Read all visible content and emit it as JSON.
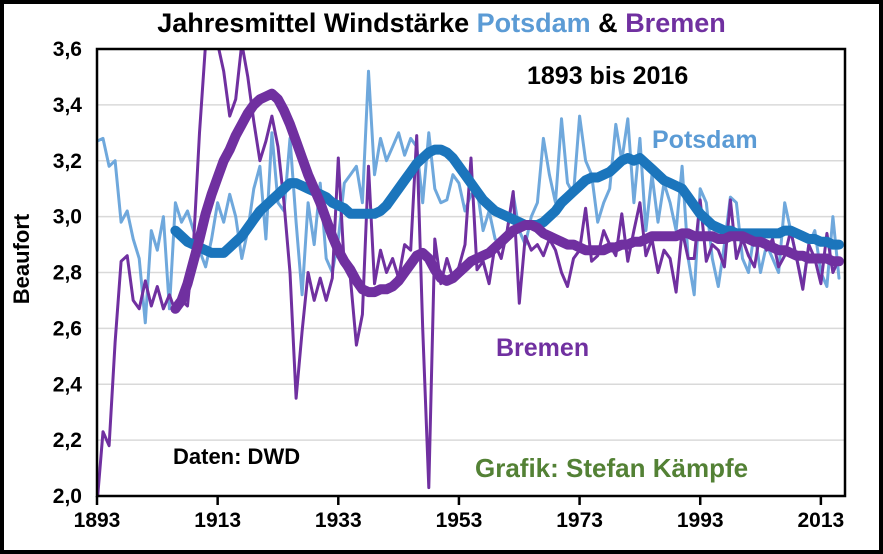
{
  "title": {
    "part1": "Jahresmittel Windstärke ",
    "potsdam": "Potsdam",
    "amp": " & ",
    "bremen": "Bremen"
  },
  "annotations": {
    "range": "1893 bis 2016",
    "potsdam": "Potsdam",
    "bremen": "Bremen",
    "source": "Daten: DWD",
    "credit": "Grafik: Stefan Kämpfe"
  },
  "colors": {
    "potsdam_annual": "#6FA8DC",
    "potsdam_smoothed": "#1B75BC",
    "bremen": "#7030A0",
    "title_potsdam": "#5B9BD5",
    "title_bremen": "#7030A0",
    "credit_green": "#538135",
    "grid": "#D9D9D9",
    "axis": "#000000",
    "background": "#FFFFFF"
  },
  "chart_data": {
    "type": "line",
    "title": "Jahresmittel Windstärke Potsdam & Bremen",
    "xlabel": "",
    "ylabel": "Beaufort",
    "ylim": [
      2.0,
      3.6
    ],
    "xlim": [
      1893,
      2017
    ],
    "grid": "horizontal-only",
    "legend_position": "inline-text-labels",
    "y_ticks": {
      "values": [
        2.0,
        2.2,
        2.4,
        2.6,
        2.8,
        3.0,
        3.2,
        3.4,
        3.6
      ],
      "labels": [
        "2,0",
        "2,2",
        "2,4",
        "2,6",
        "2,8",
        "3,0",
        "3,2",
        "3,4",
        "3,6"
      ]
    },
    "x_ticks": {
      "values": [
        1893,
        1913,
        1933,
        1953,
        1973,
        1993,
        2013
      ],
      "labels": [
        "1893",
        "1913",
        "1933",
        "1953",
        "1973",
        "1993",
        "2013"
      ]
    },
    "series": [
      {
        "id": "potsdam-annual",
        "name": "Potsdam",
        "role": "annual",
        "color": "#6FA8DC",
        "stroke_width": 3,
        "start_year": 1893,
        "values": [
          3.27,
          3.28,
          3.18,
          3.2,
          2.98,
          3.02,
          2.92,
          2.85,
          2.62,
          2.95,
          2.88,
          3.0,
          2.67,
          3.05,
          2.98,
          3.02,
          2.95,
          2.88,
          2.82,
          2.92,
          3.05,
          2.98,
          3.08,
          3.0,
          2.85,
          2.95,
          3.1,
          3.18,
          2.92,
          3.3,
          3.05,
          3.02,
          3.28,
          2.98,
          2.72,
          3.05,
          2.9,
          3.12,
          2.85,
          2.8,
          2.92,
          3.12,
          3.15,
          3.18,
          3.05,
          3.52,
          3.15,
          3.28,
          3.2,
          3.25,
          3.3,
          3.22,
          3.28,
          3.25,
          3.05,
          3.3,
          3.1,
          3.05,
          3.06,
          3.15,
          3.12,
          3.02,
          3.08,
          3.1,
          2.95,
          3.02,
          2.92,
          2.9,
          2.95,
          3.08,
          2.95,
          2.9,
          3.0,
          3.05,
          3.28,
          3.15,
          3.05,
          3.35,
          3.12,
          3.08,
          3.36,
          3.2,
          3.15,
          2.98,
          3.05,
          3.1,
          3.33,
          3.2,
          3.35,
          3.05,
          3.28,
          2.95,
          3.15,
          2.98,
          3.12,
          3.05,
          2.95,
          3.18,
          2.85,
          2.72,
          3.1,
          3.05,
          2.85,
          2.75,
          2.9,
          3.07,
          3.05,
          2.85,
          2.8,
          2.95,
          2.8,
          2.9,
          2.85,
          2.8,
          3.05,
          2.95,
          2.85,
          2.75,
          2.9,
          2.95,
          2.8,
          2.75,
          3.0,
          2.78
        ]
      },
      {
        "id": "bremen-annual",
        "name": "Bremen",
        "role": "annual",
        "color": "#7030A0",
        "stroke_width": 3,
        "start_year": 1893,
        "values": [
          1.97,
          2.23,
          2.18,
          2.55,
          2.84,
          2.86,
          2.7,
          2.67,
          2.77,
          2.68,
          2.75,
          2.67,
          2.72,
          2.66,
          2.7,
          2.68,
          2.9,
          3.3,
          3.62,
          3.64,
          3.62,
          3.52,
          3.36,
          3.42,
          3.62,
          3.5,
          3.34,
          3.2,
          3.27,
          3.36,
          3.25,
          3.05,
          2.8,
          2.35,
          2.59,
          2.8,
          2.7,
          2.78,
          2.7,
          2.78,
          3.21,
          2.82,
          2.78,
          2.54,
          2.65,
          3.18,
          2.76,
          2.88,
          2.8,
          2.85,
          2.78,
          2.9,
          2.88,
          3.29,
          2.6,
          2.03,
          2.92,
          2.76,
          2.85,
          2.78,
          2.82,
          2.9,
          3.21,
          2.81,
          2.84,
          2.76,
          2.9,
          2.85,
          2.95,
          3.09,
          2.69,
          2.93,
          2.88,
          2.9,
          2.86,
          2.92,
          2.88,
          2.8,
          2.75,
          2.85,
          2.88,
          3.03,
          2.84,
          2.86,
          2.95,
          2.9,
          2.86,
          3.01,
          2.84,
          2.95,
          3.05,
          2.86,
          2.92,
          2.8,
          2.88,
          2.85,
          2.73,
          2.95,
          2.85,
          2.85,
          3.06,
          2.84,
          2.9,
          2.88,
          2.82,
          3.06,
          2.85,
          2.92,
          2.86,
          2.82,
          2.95,
          2.88,
          2.92,
          2.82,
          2.86,
          2.95,
          2.85,
          2.74,
          2.9,
          2.85,
          2.76,
          2.94,
          2.8,
          2.85
        ]
      },
      {
        "id": "potsdam-smoothed",
        "name": "Potsdam",
        "role": "smoothed",
        "color": "#1B75BC",
        "stroke_width": 10,
        "start_year": 1906,
        "values": [
          2.95,
          2.93,
          2.91,
          2.9,
          2.89,
          2.88,
          2.87,
          2.87,
          2.87,
          2.89,
          2.91,
          2.93,
          2.96,
          2.99,
          3.02,
          3.04,
          3.06,
          3.08,
          3.1,
          3.12,
          3.12,
          3.11,
          3.1,
          3.09,
          3.08,
          3.07,
          3.05,
          3.04,
          3.03,
          3.01,
          3.01,
          3.01,
          3.01,
          3.01,
          3.02,
          3.04,
          3.07,
          3.1,
          3.13,
          3.16,
          3.19,
          3.21,
          3.23,
          3.24,
          3.24,
          3.23,
          3.21,
          3.18,
          3.15,
          3.12,
          3.09,
          3.06,
          3.04,
          3.02,
          3.01,
          3.0,
          2.99,
          2.98,
          2.97,
          2.97,
          2.97,
          2.98,
          3.0,
          3.02,
          3.05,
          3.07,
          3.09,
          3.11,
          3.13,
          3.14,
          3.14,
          3.15,
          3.16,
          3.18,
          3.2,
          3.21,
          3.2,
          3.21,
          3.19,
          3.17,
          3.15,
          3.13,
          3.12,
          3.11,
          3.1,
          3.07,
          3.04,
          3.01,
          2.99,
          2.97,
          2.96,
          2.95,
          2.95,
          2.94,
          2.94,
          2.94,
          2.94,
          2.94,
          2.94,
          2.94,
          2.94,
          2.95,
          2.95,
          2.94,
          2.93,
          2.92,
          2.92,
          2.91,
          2.91,
          2.9,
          2.9
        ]
      },
      {
        "id": "bremen-smoothed",
        "name": "Bremen",
        "role": "smoothed",
        "color": "#7030A0",
        "stroke_width": 10,
        "start_year": 1906,
        "values": [
          2.67,
          2.7,
          2.76,
          2.84,
          2.92,
          3.01,
          3.08,
          3.14,
          3.2,
          3.24,
          3.29,
          3.33,
          3.37,
          3.4,
          3.42,
          3.43,
          3.44,
          3.42,
          3.38,
          3.33,
          3.27,
          3.21,
          3.15,
          3.1,
          3.05,
          2.99,
          2.93,
          2.88,
          2.84,
          2.81,
          2.77,
          2.74,
          2.73,
          2.73,
          2.74,
          2.74,
          2.75,
          2.77,
          2.8,
          2.83,
          2.86,
          2.87,
          2.85,
          2.81,
          2.78,
          2.77,
          2.78,
          2.8,
          2.82,
          2.84,
          2.85,
          2.86,
          2.87,
          2.89,
          2.91,
          2.93,
          2.95,
          2.96,
          2.97,
          2.97,
          2.96,
          2.94,
          2.93,
          2.92,
          2.91,
          2.9,
          2.9,
          2.89,
          2.88,
          2.88,
          2.88,
          2.88,
          2.89,
          2.89,
          2.9,
          2.9,
          2.91,
          2.91,
          2.92,
          2.93,
          2.93,
          2.93,
          2.93,
          2.93,
          2.94,
          2.94,
          2.93,
          2.93,
          2.93,
          2.93,
          2.92,
          2.92,
          2.93,
          2.93,
          2.93,
          2.92,
          2.91,
          2.91,
          2.9,
          2.89,
          2.88,
          2.88,
          2.87,
          2.86,
          2.86,
          2.85,
          2.85,
          2.85,
          2.85,
          2.84,
          2.84
        ]
      }
    ]
  }
}
